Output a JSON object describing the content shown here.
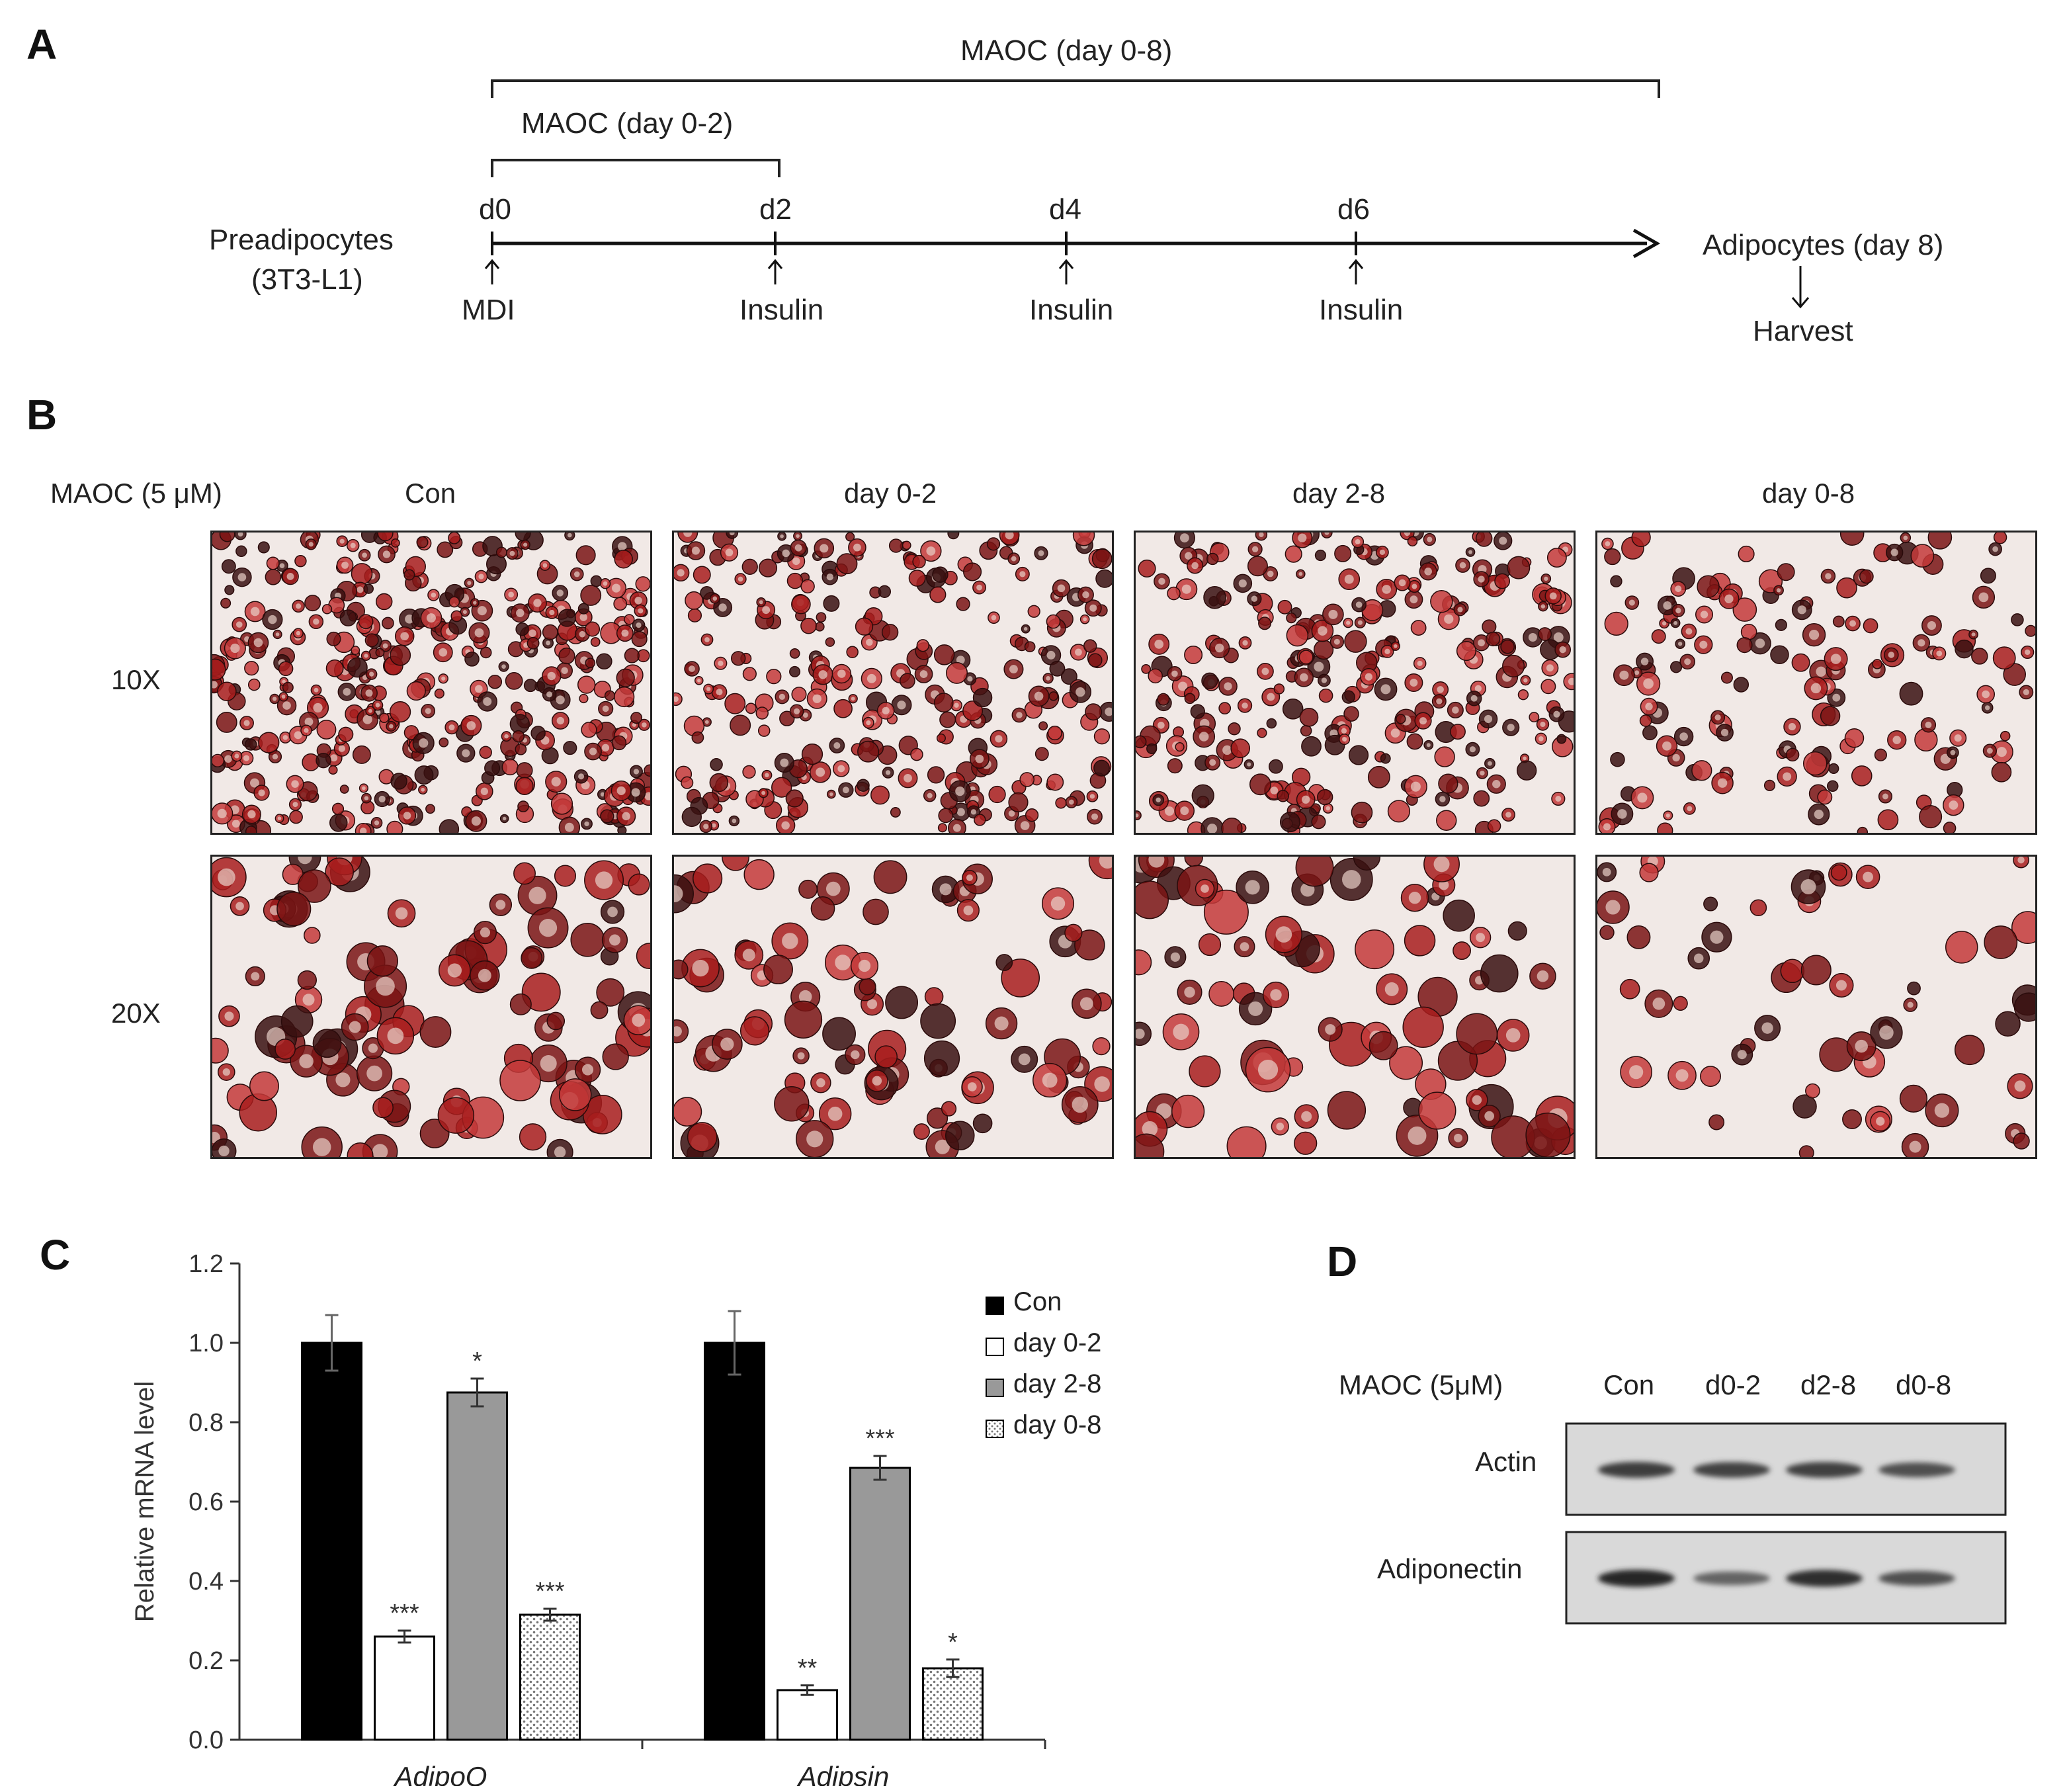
{
  "panels": {
    "A": {
      "letter": "A",
      "bracket_long": "MAOC (day 0-8)",
      "bracket_short": "MAOC (day 0-2)",
      "days": [
        "d0",
        "d2",
        "d4",
        "d6"
      ],
      "treatments": [
        "MDI",
        "Insulin",
        "Insulin",
        "Insulin"
      ],
      "start_line1": "Preadipocytes",
      "start_line2": "(3T3-L1)",
      "end_label": "Adipocytes (day 8)",
      "harvest": "Harvest"
    },
    "B": {
      "letter": "B",
      "condition_label": "MAOC (5 μM)",
      "columns": [
        "Con",
        "day 0-2",
        "day 2-8",
        "day 0-8"
      ],
      "rows": [
        "10X",
        "20X"
      ]
    },
    "C": {
      "letter": "C",
      "legend": [
        "Con",
        "day 0-2",
        "day 2-8",
        "day 0-8"
      ]
    },
    "D": {
      "letter": "D",
      "condition_label": "MAOC (5μM)",
      "lanes": [
        "Con",
        "d0-2",
        "d2-8",
        "d0-8"
      ],
      "proteins": [
        "Actin",
        "Adiponectin"
      ],
      "band_intensity": {
        "Actin": [
          0.85,
          0.8,
          0.82,
          0.7
        ],
        "Adiponectin": [
          1.0,
          0.55,
          0.95,
          0.7
        ]
      }
    }
  },
  "chart_data": {
    "type": "bar",
    "categories": [
      "AdipoQ",
      "Adipsin"
    ],
    "ylabel": "Relative mRNA level",
    "ylim": [
      0,
      1.2
    ],
    "yticks": [
      "0.0",
      "0.2",
      "0.4",
      "0.6",
      "0.8",
      "1.0",
      "1.2"
    ],
    "series": [
      {
        "name": "Con",
        "values": [
          1.0,
          1.0
        ],
        "errors": [
          0.07,
          0.08
        ],
        "sig": [
          "",
          ""
        ],
        "fill": "#000000"
      },
      {
        "name": "day 0-2",
        "values": [
          0.26,
          0.125
        ],
        "errors": [
          0.015,
          0.012
        ],
        "sig": [
          "***",
          "**"
        ],
        "fill": "#ffffff"
      },
      {
        "name": "day 2-8",
        "values": [
          0.875,
          0.685
        ],
        "errors": [
          0.035,
          0.03
        ],
        "sig": [
          "*",
          "***"
        ],
        "fill": "#999999"
      },
      {
        "name": "day 0-8",
        "values": [
          0.315,
          0.18
        ],
        "errors": [
          0.015,
          0.022
        ],
        "sig": [
          "***",
          "*"
        ],
        "fill": "dots"
      }
    ]
  }
}
